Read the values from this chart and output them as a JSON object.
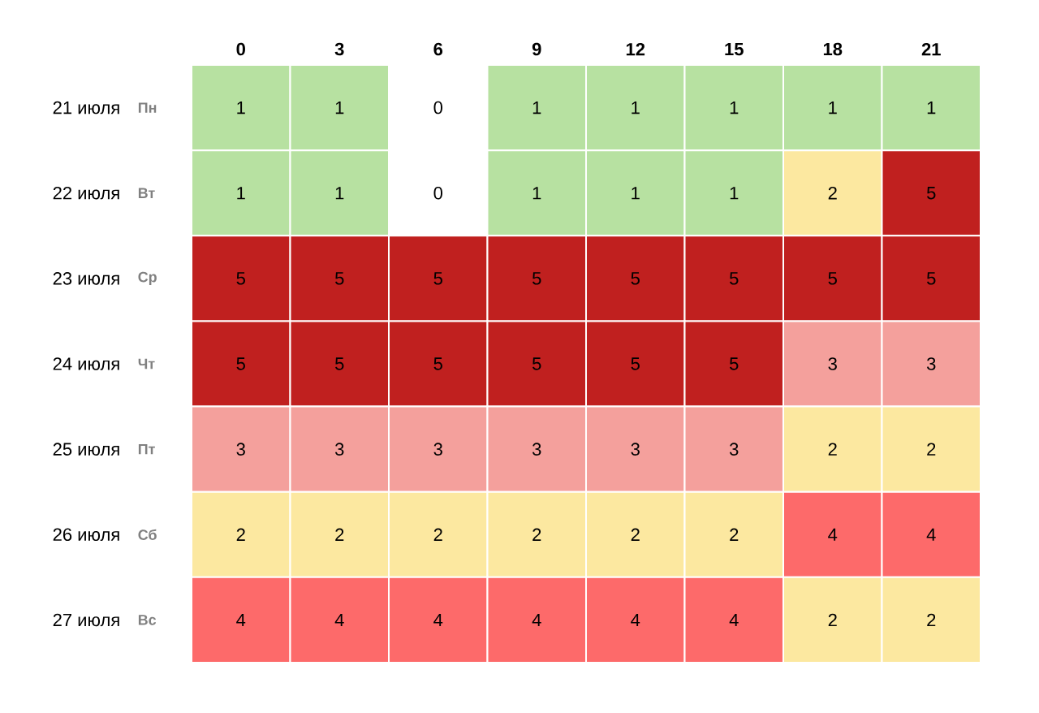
{
  "chart_data": {
    "type": "heatmap",
    "categories": [
      "0",
      "3",
      "6",
      "9",
      "12",
      "15",
      "18",
      "21"
    ],
    "y_categories": [
      "21 июля",
      "22 июля",
      "23 июля",
      "24 июля",
      "25 июля",
      "26 июля",
      "27 июля"
    ],
    "y2_categories": [
      "Пн",
      "Вт",
      "Ср",
      "Чт",
      "Пт",
      "Сб",
      "Вс"
    ],
    "cells": [
      [
        1,
        1,
        0,
        1,
        1,
        1,
        1,
        1
      ],
      [
        1,
        1,
        0,
        1,
        1,
        1,
        2,
        5
      ],
      [
        5,
        5,
        5,
        5,
        5,
        5,
        5,
        5
      ],
      [
        5,
        5,
        5,
        5,
        5,
        5,
        3,
        3
      ],
      [
        3,
        3,
        3,
        3,
        3,
        3,
        2,
        2
      ],
      [
        2,
        2,
        2,
        2,
        2,
        2,
        4,
        4
      ],
      [
        4,
        4,
        4,
        4,
        4,
        4,
        2,
        2
      ]
    ],
    "colors": [
      "#ffffff",
      "#b7e1a1",
      "#fce8a0",
      "#f4a09c",
      "#fd6a6a",
      "#c0201f"
    ],
    "data_labels": true
  }
}
